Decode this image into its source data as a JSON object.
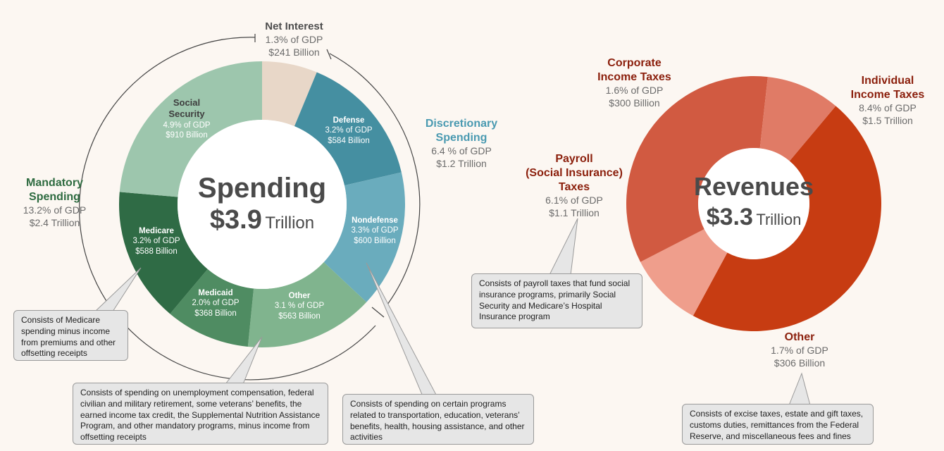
{
  "chart_data": [
    {
      "type": "donut",
      "title": "Spending",
      "total_value": "$3.9",
      "total_unit": "Trillion",
      "total_trillion": 3.9,
      "slices": [
        {
          "name": "Net Interest",
          "pct_gdp": "1.3% of GDP",
          "amount": "$241 Billion",
          "value_billion": 241,
          "color": "#e8d7c8"
        },
        {
          "name": "Defense",
          "pct_gdp": "3.2% of GDP",
          "amount": "$584 Billion",
          "value_billion": 584,
          "color": "#458fa1"
        },
        {
          "name": "Nondefense",
          "pct_gdp": "3.3% of GDP",
          "amount": "$600 Billion",
          "value_billion": 600,
          "color": "#6aacbd"
        },
        {
          "name": "Other",
          "pct_gdp": "3.1 % of GDP",
          "amount": "$563 Billion",
          "value_billion": 563,
          "color": "#80b48e"
        },
        {
          "name": "Medicaid",
          "pct_gdp": "2.0% of GDP",
          "amount": "$368 Billion",
          "value_billion": 368,
          "color": "#4f8c62"
        },
        {
          "name": "Medicare",
          "pct_gdp": "3.2% of GDP",
          "amount": "$588 Billion",
          "value_billion": 588,
          "color": "#2f6b45"
        },
        {
          "name": "Social Security",
          "pct_gdp": "4.9% of GDP",
          "amount": "$910 Billion",
          "value_billion": 910,
          "color": "#9dc6ad"
        }
      ],
      "groups": [
        {
          "name": "Mandatory Spending",
          "pct_gdp": "13.2% of GDP",
          "amount": "$2.4 Trillion"
        },
        {
          "name": "Discretionary Spending",
          "pct_gdp": "6.4 % of GDP",
          "amount": "$1.2 Trillion"
        }
      ]
    },
    {
      "type": "donut",
      "title": "Revenues",
      "total_value": "$3.3",
      "total_unit": "Trillion",
      "total_trillion": 3.3,
      "slices": [
        {
          "name": "Individual Income Taxes",
          "pct_gdp": "8.4% of GDP",
          "amount": "$1.5 Trillion",
          "value_billion": 1500,
          "color": "#c73c12"
        },
        {
          "name": "Other",
          "pct_gdp": "1.7% of GDP",
          "amount": "$306 Billion",
          "value_billion": 306,
          "color": "#ef9e8c"
        },
        {
          "name": "Payroll (Social Insurance) Taxes",
          "pct_gdp": "6.1% of GDP",
          "amount": "$1.1 Trillion",
          "value_billion": 1100,
          "color": "#d15a41"
        },
        {
          "name": "Corporate Income Taxes",
          "pct_gdp": "1.6% of GDP",
          "amount": "$300 Billion",
          "value_billion": 300,
          "color": "#e07b66"
        }
      ]
    }
  ],
  "labels": {
    "net_interest": {
      "name": "Net Interest",
      "pct": "1.3% of GDP",
      "amt": "$241 Billion"
    },
    "social_security": {
      "name1": "Social",
      "name2": "Security",
      "pct": "4.9% of GDP",
      "amt": "$910 Billion"
    },
    "defense": {
      "name": "Defense",
      "pct": "3.2% of GDP",
      "amt": "$584 Billion"
    },
    "nondefense": {
      "name": "Nondefense",
      "pct": "3.3% of GDP",
      "amt": "$600 Billion"
    },
    "other_sp": {
      "name": "Other",
      "pct": "3.1 % of GDP",
      "amt": "$563 Billion"
    },
    "medicaid": {
      "name": "Medicaid",
      "pct": "2.0% of GDP",
      "amt": "$368 Billion"
    },
    "medicare": {
      "name": "Medicare",
      "pct": "3.2% of GDP",
      "amt": "$588 Billion"
    },
    "mandatory": {
      "name1": "Mandatory",
      "name2": "Spending",
      "pct": "13.2% of GDP",
      "amt": "$2.4 Trillion"
    },
    "discretionary": {
      "name1": "Discretionary",
      "name2": "Spending",
      "pct": "6.4 % of GDP",
      "amt": "$1.2 Trillion"
    },
    "spending_center": {
      "title": "Spending",
      "value": "$3.9",
      "unit": "Trillion"
    },
    "revenues_center": {
      "title": "Revenues",
      "value": "$3.3",
      "unit": "Trillion"
    },
    "corporate": {
      "name1": "Corporate",
      "name2": "Income Taxes",
      "pct": "1.6% of GDP",
      "amt": "$300 Billion"
    },
    "individual": {
      "name1": "Individual",
      "name2": "Income Taxes",
      "pct": "8.4% of GDP",
      "amt": "$1.5 Trillion"
    },
    "payroll": {
      "name1": "Payroll",
      "name2": "(Social Insurance)",
      "name3": "Taxes",
      "pct": "6.1% of GDP",
      "amt": "$1.1 Trillion"
    },
    "other_rev": {
      "name": "Other",
      "pct": "1.7% of GDP",
      "amt": "$306 Billion"
    }
  },
  "callouts": {
    "medicare": "Consists of Medicare spending minus income from premiums and other offsetting receipts",
    "other_mandatory": "Consists of spending on unemployment compensation, federal civilian and military retirement, some veterans’ benefits, the earned income tax credit, the Supplemental Nutrition Assistance Program, and other mandatory programs, minus income from offsetting receipts",
    "nondefense": "Consists of spending on certain programs related to transportation, education, veterans’ benefits, health, housing assistance, and other activities",
    "payroll": "Consists of payroll taxes that fund social insurance programs, primarily Social Security and Medicare’s Hospital Insurance program",
    "other_rev": "Consists of excise taxes, estate and gift taxes, customs duties, remittances from the Federal Reserve, and miscellaneous fees and fines"
  }
}
